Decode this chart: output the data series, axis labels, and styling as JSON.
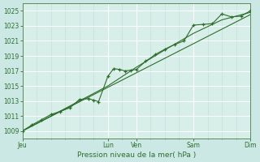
{
  "title": "",
  "xlabel": "Pression niveau de la mer( hPa )",
  "bg_color": "#cce8e4",
  "plot_bg_color": "#d8eee8",
  "grid_color": "#ffffff",
  "subgrid_color": "#c0dcd8",
  "line_color": "#2d6e2d",
  "tick_color": "#2d6e2d",
  "spine_color": "#5a8a5a",
  "ylim": [
    1008.0,
    1026.0
  ],
  "yticks": [
    1009,
    1011,
    1013,
    1015,
    1017,
    1019,
    1021,
    1023,
    1025
  ],
  "xlim": [
    0,
    8
  ],
  "xtick_labels": [
    "Jeu",
    "Lun",
    "Ven",
    "Sam",
    "Dim"
  ],
  "xtick_positions": [
    0,
    3.0,
    4.0,
    6.0,
    8.0
  ],
  "line1_x": [
    0,
    0.33,
    0.67,
    1.0,
    1.33,
    1.67,
    2.0,
    2.33,
    2.5,
    2.67,
    3.0,
    3.2,
    3.4,
    3.6,
    3.8,
    4.0,
    4.33,
    4.67,
    5.0,
    5.33,
    5.67,
    6.0,
    6.33,
    6.67,
    7.0,
    7.33,
    7.67,
    8.0
  ],
  "line1_y": [
    1009.0,
    1009.8,
    1010.5,
    1011.2,
    1011.6,
    1012.1,
    1013.2,
    1013.3,
    1013.1,
    1012.9,
    1016.3,
    1017.3,
    1017.2,
    1017.0,
    1017.1,
    1017.2,
    1018.3,
    1019.2,
    1019.9,
    1020.5,
    1021.0,
    1023.1,
    1023.2,
    1023.3,
    1024.6,
    1024.2,
    1024.3,
    1025.0
  ],
  "line2_x": [
    0,
    1.0,
    2.0,
    3.0,
    4.0,
    5.0,
    6.0,
    7.0,
    8.0
  ],
  "line2_y": [
    1009.0,
    1011.0,
    1013.0,
    1015.0,
    1017.5,
    1019.8,
    1022.0,
    1023.8,
    1024.8
  ],
  "line3_x": [
    0,
    8.0
  ],
  "line3_y": [
    1009.0,
    1024.5
  ]
}
